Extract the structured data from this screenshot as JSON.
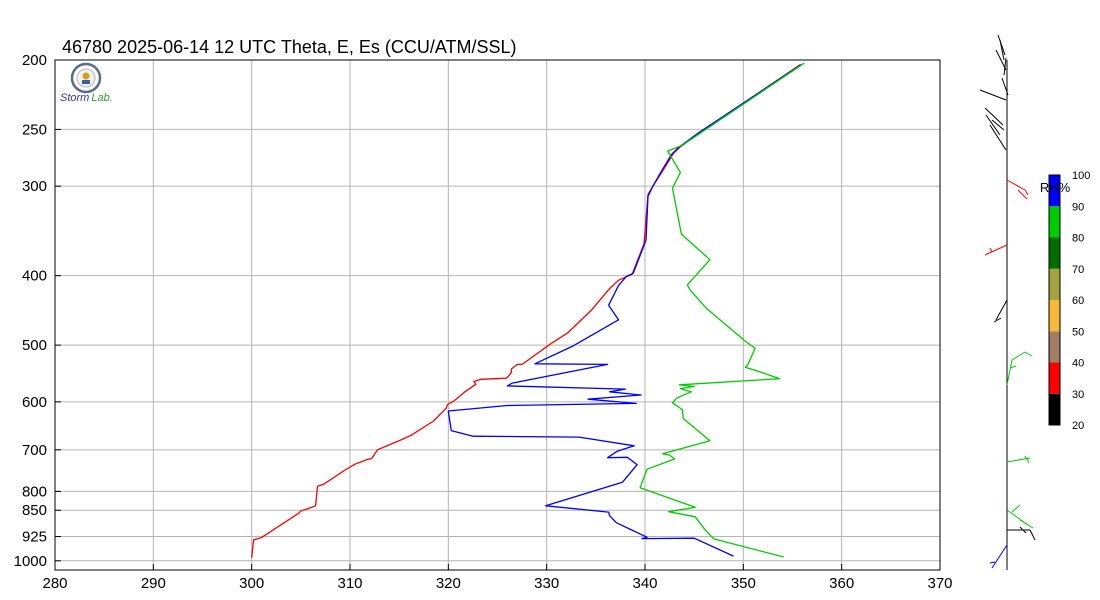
{
  "header": {
    "title": "46780   2025-06-14 12 UTC   Theta, E, Es (CCU/ATM/SSL)"
  },
  "logo": {
    "text_main": "Storm",
    "text_suffix": "Lab."
  },
  "chart_data": [
    {
      "type": "line",
      "title": "46780   2025-06-14 12 UTC   Theta, E, Es (CCU/ATM/SSL)",
      "xlabel": "",
      "ylabel": "",
      "xlim": [
        280,
        370
      ],
      "ylim": [
        1000,
        200
      ],
      "y_scale": "log-pressure",
      "grid": true,
      "x_ticks": [
        280,
        290,
        300,
        310,
        320,
        330,
        340,
        350,
        360,
        370
      ],
      "y_ticks": [
        200,
        250,
        300,
        400,
        500,
        600,
        700,
        800,
        850,
        925,
        1000
      ],
      "series": [
        {
          "color": "#ff0000",
          "points": [
            [
              300.0,
              990
            ],
            [
              300.2,
              935
            ],
            [
              300.6,
              931
            ],
            [
              301.0,
              928
            ],
            [
              304.8,
              858
            ],
            [
              305.0,
              852
            ],
            [
              305.8,
              845
            ],
            [
              306.5,
              838
            ],
            [
              306.7,
              787
            ],
            [
              307.3,
              782
            ],
            [
              309.5,
              747
            ],
            [
              310.5,
              733
            ],
            [
              311.8,
              722
            ],
            [
              312.2,
              720
            ],
            [
              312.8,
              700
            ],
            [
              315.2,
              678
            ],
            [
              316.2,
              668
            ],
            [
              318.5,
              638
            ],
            [
              319.4,
              620
            ],
            [
              319.8,
              612
            ],
            [
              319.9,
              606
            ],
            [
              320.1,
              603
            ],
            [
              320.6,
              598
            ],
            [
              321.7,
              581
            ],
            [
              322.8,
              567
            ],
            [
              322.6,
              562
            ],
            [
              323.3,
              558
            ],
            [
              325.9,
              556
            ],
            [
              326.2,
              551
            ],
            [
              326.4,
              546
            ],
            [
              326.4,
              540
            ],
            [
              327.0,
              532
            ],
            [
              327.5,
              532
            ],
            [
              330.5,
              497
            ],
            [
              332.2,
              480
            ],
            [
              334.6,
              446
            ],
            [
              336.4,
              417
            ],
            [
              337.3,
              406
            ],
            [
              338.7,
              398
            ],
            [
              339.9,
              361
            ],
            [
              340.3,
              308
            ],
            [
              340.8,
              300
            ],
            [
              341.7,
              287
            ],
            [
              342.9,
              270
            ],
            [
              343.5,
              265
            ],
            [
              345.5,
              253
            ],
            [
              355.8,
              203
            ]
          ]
        },
        {
          "color": "#0000ff",
          "points": [
            [
              349.0,
              985
            ],
            [
              345.0,
              930
            ],
            [
              339.7,
              931
            ],
            [
              340.2,
              927
            ],
            [
              337.1,
              885
            ],
            [
              336.4,
              865
            ],
            [
              336.3,
              855
            ],
            [
              329.9,
              838
            ],
            [
              337.7,
              777
            ],
            [
              339.2,
              734
            ],
            [
              338.2,
              717
            ],
            [
              336.2,
              718
            ],
            [
              337.2,
              703
            ],
            [
              338.9,
              691
            ],
            [
              333.3,
              672
            ],
            [
              322.5,
              670
            ],
            [
              320.3,
              658
            ],
            [
              320.0,
              618
            ],
            [
              326.0,
              607
            ],
            [
              339.1,
              603
            ],
            [
              334.2,
              595
            ],
            [
              339.6,
              587
            ],
            [
              336.4,
              581
            ],
            [
              338.0,
              576
            ],
            [
              326.0,
              570
            ],
            [
              326.5,
              565
            ],
            [
              336.2,
              532
            ],
            [
              328.8,
              531
            ],
            [
              332.6,
              502
            ],
            [
              337.3,
              461
            ],
            [
              336.3,
              440
            ],
            [
              337.3,
              413
            ],
            [
              338.1,
              401
            ],
            [
              338.8,
              397
            ],
            [
              340.1,
              357
            ],
            [
              340.3,
              310
            ],
            [
              340.8,
              300
            ],
            [
              341.6,
              287
            ],
            [
              342.7,
              271
            ],
            [
              343.4,
              265
            ],
            [
              345.4,
              253
            ],
            [
              355.9,
              203
            ]
          ]
        },
        {
          "color": "#00cc00",
          "points": [
            [
              354.1,
              988
            ],
            [
              347.0,
              932
            ],
            [
              346.1,
              905
            ],
            [
              345.1,
              868
            ],
            [
              342.4,
              854
            ],
            [
              345.1,
              842
            ],
            [
              339.5,
              791
            ],
            [
              340.2,
              745
            ],
            [
              343.0,
              721
            ],
            [
              342.5,
              712
            ],
            [
              341.8,
              709
            ],
            [
              346.6,
              680
            ],
            [
              343.9,
              633
            ],
            [
              343.8,
              616
            ],
            [
              343.5,
              611
            ],
            [
              342.8,
              602
            ],
            [
              343.2,
              593
            ],
            [
              344.7,
              581
            ],
            [
              343.6,
              575
            ],
            [
              345.0,
              571
            ],
            [
              343.5,
              568
            ],
            [
              353.7,
              557
            ],
            [
              351.2,
              542
            ],
            [
              350.2,
              537
            ],
            [
              350.5,
              531
            ],
            [
              351.2,
              505
            ],
            [
              350.3,
              495
            ],
            [
              346.3,
              445
            ],
            [
              344.6,
              419
            ],
            [
              344.3,
              412
            ],
            [
              346.6,
              380
            ],
            [
              343.7,
              350
            ],
            [
              342.8,
              302
            ],
            [
              343.6,
              287
            ],
            [
              342.3,
              268
            ],
            [
              343.8,
              263
            ],
            [
              356.2,
              202
            ]
          ]
        }
      ]
    },
    {
      "type": "bar",
      "title": "",
      "label": "RH%",
      "categories": [
        "20-30",
        "30-40",
        "40-50",
        "50-60",
        "60-70",
        "70-80",
        "80-90",
        "90-100"
      ],
      "ticks": [
        20,
        30,
        40,
        50,
        60,
        70,
        80,
        90,
        100
      ],
      "colors": [
        "#000000",
        "#ff0000",
        "#a47e64",
        "#f8b938",
        "#a4a43e",
        "#006e00",
        "#00cc00",
        "#0000ff"
      ]
    }
  ]
}
